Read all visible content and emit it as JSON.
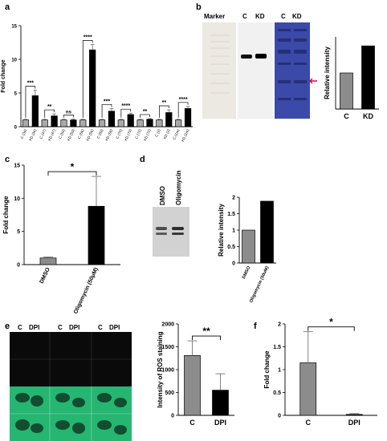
{
  "panels": {
    "a": "a",
    "b": "b",
    "c": "c",
    "d": "d",
    "e": "e",
    "f": "f"
  },
  "chart_data": [
    {
      "id": "a",
      "type": "bar",
      "ylabel": "Fold change",
      "ylim": [
        0,
        15
      ],
      "yticks": [
        0,
        5,
        10,
        15
      ],
      "categories": [
        "C (34)",
        "KD (34)",
        "C (47)",
        "KD (47)",
        "C (53)",
        "KD (53)",
        "C (56)",
        "KD (56)",
        "C (59)",
        "KD (59)",
        "C (70)",
        "KD (70)",
        "C (72)",
        "KD (72)",
        "C (2)",
        "KD (2)",
        "C (1m)",
        "KD (1m)"
      ],
      "values": [
        1.0,
        4.6,
        1.0,
        1.6,
        1.0,
        1.0,
        1.0,
        11.4,
        1.0,
        2.3,
        1.0,
        1.8,
        1.0,
        1.1,
        1.0,
        2.1,
        1.0,
        2.7
      ],
      "errors": [
        0.1,
        0.8,
        0.1,
        0.3,
        0.1,
        0.15,
        0.1,
        0.8,
        0.1,
        0.4,
        0.1,
        0.2,
        0.1,
        0.1,
        0.1,
        0.4,
        0.1,
        0.3
      ],
      "significance": [
        "***",
        "**",
        "ns",
        "****",
        "***",
        "****",
        "**",
        "**",
        "****"
      ],
      "colors": {
        "control": "#a9a9a9",
        "kd": "#000000"
      }
    },
    {
      "id": "b",
      "type": "bar",
      "ylabel": "Relative intensity",
      "ylim": [
        0,
        2
      ],
      "categories": [
        "C",
        "KD"
      ],
      "values": [
        1.0,
        1.75
      ],
      "colors": [
        "#8c8c8c",
        "#000000"
      ]
    },
    {
      "id": "c",
      "type": "bar",
      "ylabel": "Fold change",
      "ylim": [
        0,
        15
      ],
      "yticks": [
        0,
        5,
        10,
        15
      ],
      "categories": [
        "DMSO",
        "Oligomycin (50μM)"
      ],
      "values": [
        1.0,
        8.8
      ],
      "errors": [
        0.15,
        4.5
      ],
      "significance": "*",
      "colors": [
        "#8c8c8c",
        "#000000"
      ]
    },
    {
      "id": "d",
      "type": "bar",
      "ylabel": "Relative intensity",
      "ylim": [
        0,
        2.0
      ],
      "yticks": [
        0.0,
        0.5,
        1.0,
        1.5,
        2.0
      ],
      "categories": [
        "DMSO",
        "Oligomycin (50uM)"
      ],
      "values": [
        1.0,
        1.88
      ],
      "colors": [
        "#8c8c8c",
        "#000000"
      ]
    },
    {
      "id": "e",
      "type": "bar",
      "ylabel": "Intensity of ROS staining",
      "ylim": [
        0,
        2000
      ],
      "yticks": [
        0,
        500,
        1000,
        1500,
        2000
      ],
      "categories": [
        "C",
        "DPI"
      ],
      "values": [
        1310,
        550
      ],
      "errors": [
        320,
        360
      ],
      "significance": "**",
      "colors": [
        "#8c8c8c",
        "#000000"
      ]
    },
    {
      "id": "f",
      "type": "bar",
      "ylabel": "Fold change",
      "ylim": [
        0,
        2.0
      ],
      "yticks": [
        0.0,
        0.5,
        1.0,
        1.5,
        2.0
      ],
      "categories": [
        "C",
        "DPI"
      ],
      "values": [
        1.15,
        0.02
      ],
      "errors": [
        0.68,
        0.02
      ],
      "significance": "*",
      "colors": [
        "#8c8c8c",
        "#000000"
      ]
    }
  ],
  "blot_b": {
    "marker": "Marker",
    "c": "C",
    "kd": "KD",
    "c2": "C",
    "kd2": "KD"
  },
  "blot_d": {
    "dmso": "DMSO",
    "olig": "Oligomycin"
  },
  "micro_e": {
    "c1": "C",
    "dpi1": "DPI",
    "c2": "C",
    "dpi2": "DPI",
    "c3": "C",
    "dpi3": "DPI"
  }
}
